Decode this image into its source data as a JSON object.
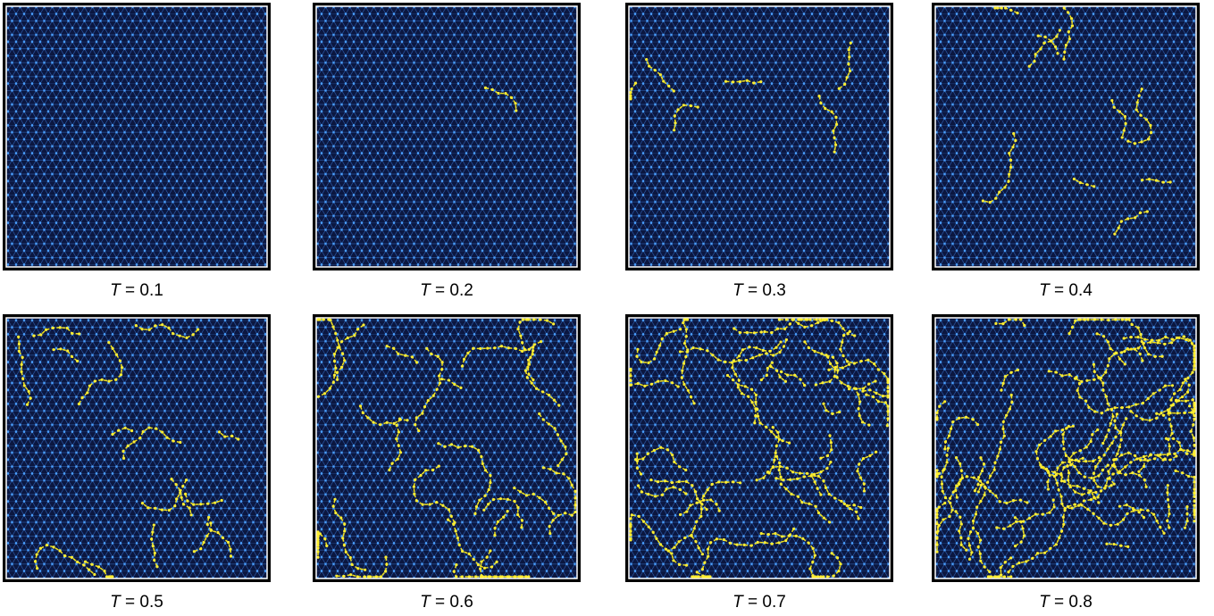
{
  "panels": [
    {
      "symbol": "T",
      "rest": " = 0.1"
    },
    {
      "symbol": "T",
      "rest": " = 0.2"
    },
    {
      "symbol": "T",
      "rest": " = 0.3"
    },
    {
      "symbol": "T",
      "rest": " = 0.4"
    },
    {
      "symbol": "T",
      "rest": " = 0.5"
    },
    {
      "symbol": "T",
      "rest": " = 0.6"
    },
    {
      "symbol": "T",
      "rest": " = 0.7"
    },
    {
      "symbol": "T",
      "rest": " = 0.8"
    }
  ]
}
